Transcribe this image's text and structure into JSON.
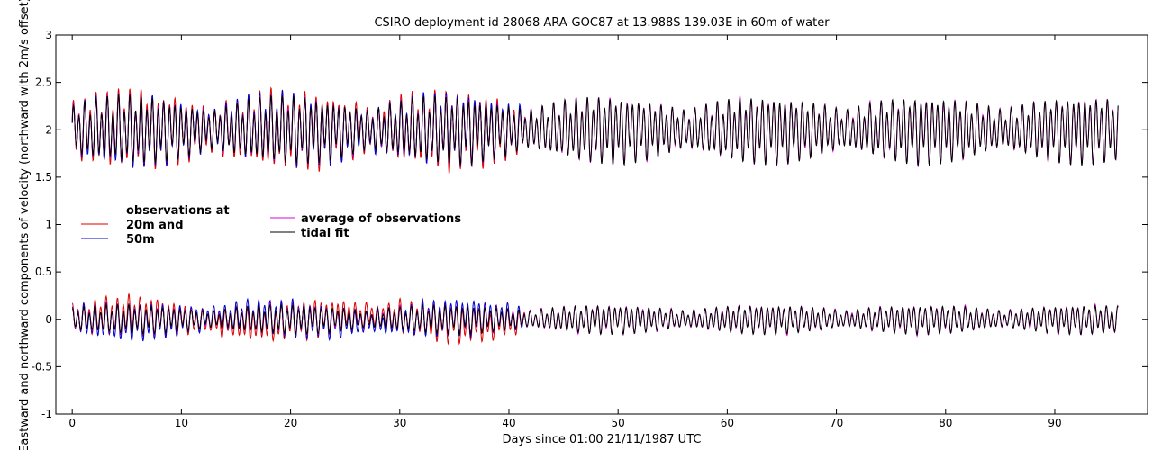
{
  "chart_data": {
    "type": "line",
    "title": "CSIRO deployment id 28068 ARA-GOC87 at 13.988S 139.03E in 60m of water",
    "xlabel": "Days since 01:00 21/11/1987 UTC",
    "ylabel": "Eastward  and northward components of velocity  (northward with 2m/s offset)",
    "xlim": [
      -1.5,
      98.5
    ],
    "ylim": [
      -1,
      3
    ],
    "xticks": [
      0,
      10,
      20,
      30,
      40,
      50,
      60,
      70,
      80,
      90
    ],
    "xtick_labels": [
      "0",
      "10",
      "20",
      "30",
      "40",
      "50",
      "60",
      "70",
      "80",
      "90"
    ],
    "yticks": [
      -1,
      -0.5,
      0,
      0.5,
      1,
      1.5,
      2,
      2.5,
      3
    ],
    "ytick_labels": [
      "-1",
      "-0.5",
      "0",
      "0.5",
      "1",
      "1.5",
      "2",
      "2.5",
      "3"
    ],
    "legend": {
      "observations_heading": "observations at",
      "entries": [
        {
          "label": "20m and",
          "color": "#e00000"
        },
        {
          "label": "50m",
          "color": "#0000d0"
        },
        {
          "label": "average of observations",
          "color": "#e000e0"
        },
        {
          "label": "tidal fit",
          "color": "#000000"
        }
      ]
    },
    "series": [
      {
        "name": "20m observations (eastward)",
        "color": "#e00000",
        "offset": 0,
        "x_range": [
          0,
          41.5
        ],
        "approx_amplitude": 0.16
      },
      {
        "name": "50m observations (eastward)",
        "color": "#0000d0",
        "offset": 0,
        "x_range": [
          0,
          41.5
        ],
        "approx_amplitude": 0.15
      },
      {
        "name": "average of observations (eastward)",
        "color": "#e000e0",
        "offset": 0,
        "x_range": [
          0,
          95.8
        ],
        "approx_amplitude": 0.12
      },
      {
        "name": "tidal fit (eastward)",
        "color": "#000000",
        "offset": 0,
        "x_range": [
          0,
          95.8
        ],
        "approx_amplitude": 0.12
      },
      {
        "name": "20m observations (northward)",
        "color": "#e00000",
        "offset": 2,
        "x_range": [
          0,
          41.5
        ],
        "approx_amplitude": 0.35
      },
      {
        "name": "50m observations (northward)",
        "color": "#0000d0",
        "offset": 2,
        "x_range": [
          0,
          41.5
        ],
        "approx_amplitude": 0.32
      },
      {
        "name": "average of observations (northward)",
        "color": "#e000e0",
        "offset": 2,
        "x_range": [
          0,
          95.8
        ],
        "approx_amplitude": 0.3
      },
      {
        "name": "tidal fit (northward)",
        "color": "#000000",
        "offset": 2,
        "x_range": [
          0,
          95.8
        ],
        "approx_amplitude": 0.3
      }
    ]
  }
}
